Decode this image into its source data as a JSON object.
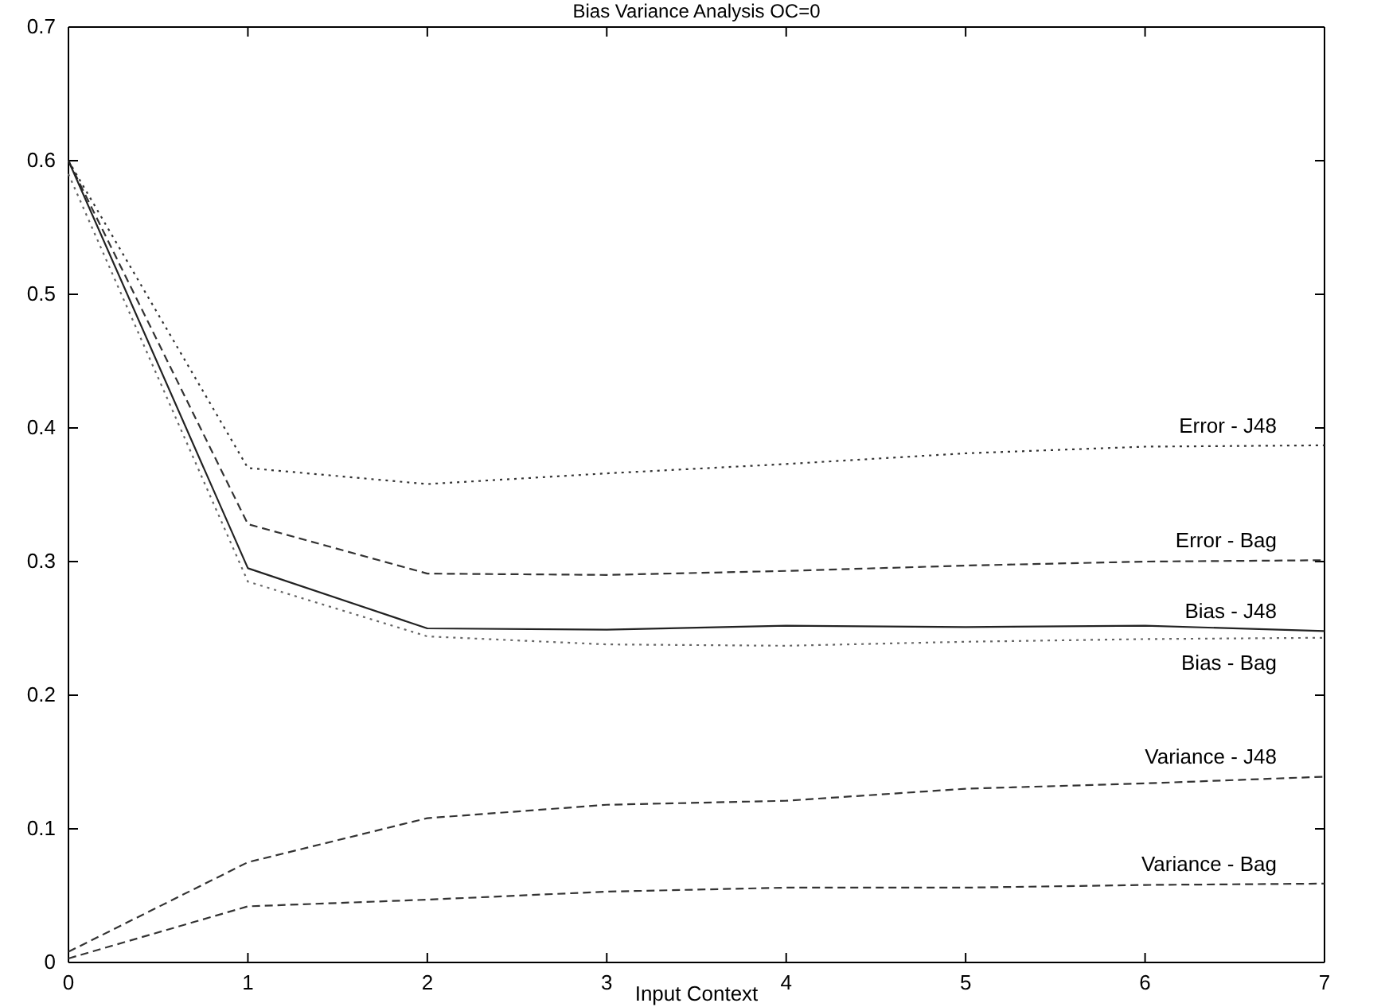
{
  "chart_data": {
    "type": "line",
    "title": "Bias Variance Analysis OC=0",
    "xlabel": "Input Context",
    "x": [
      0,
      1,
      2,
      3,
      4,
      5,
      6,
      7
    ],
    "xlim": [
      0,
      7
    ],
    "xticks": [
      0,
      1,
      2,
      3,
      4,
      5,
      6,
      7
    ],
    "ylim": [
      0,
      0.7
    ],
    "yticks": [
      0,
      0.1,
      0.2,
      0.3,
      0.4,
      0.5,
      0.6,
      0.7
    ],
    "grid": false,
    "legend": false,
    "marker": "none",
    "series": [
      {
        "name": "Error - J48",
        "color": "#333333",
        "line_style": "dotted",
        "values": [
          0.6,
          0.37,
          0.358,
          0.366,
          0.373,
          0.381,
          0.386,
          0.387
        ]
      },
      {
        "name": "Error - Bag",
        "color": "#333333",
        "line_style": "dashed",
        "values": [
          0.6,
          0.328,
          0.291,
          0.29,
          0.293,
          0.297,
          0.3,
          0.301
        ]
      },
      {
        "name": "Bias - J48",
        "color": "#222222",
        "line_style": "solid",
        "values": [
          0.6,
          0.295,
          0.25,
          0.249,
          0.252,
          0.251,
          0.252,
          0.248
        ]
      },
      {
        "name": "Bias - Bag",
        "color": "#666666",
        "line_style": "dotted",
        "values": [
          0.59,
          0.285,
          0.244,
          0.238,
          0.237,
          0.24,
          0.242,
          0.243
        ]
      },
      {
        "name": "Variance - J48",
        "color": "#333333",
        "line_style": "dashed",
        "values": [
          0.008,
          0.075,
          0.108,
          0.118,
          0.121,
          0.13,
          0.134,
          0.139
        ]
      },
      {
        "name": "Variance - Bag",
        "color": "#333333",
        "line_style": "dashed",
        "values": [
          0.003,
          0.042,
          0.047,
          0.053,
          0.056,
          0.056,
          0.058,
          0.059
        ]
      }
    ]
  }
}
